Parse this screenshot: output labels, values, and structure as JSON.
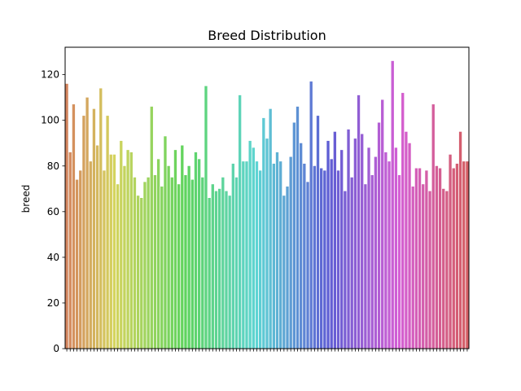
{
  "chart_data": {
    "type": "bar",
    "title": "Breed Distribution",
    "xlabel": "",
    "ylabel": "breed",
    "ylim": [
      0,
      132
    ],
    "yticks": [
      0,
      20,
      40,
      60,
      80,
      100,
      120
    ],
    "grid": false,
    "legend": "none",
    "values": [
      116,
      86,
      107,
      74,
      78,
      102,
      110,
      82,
      105,
      89,
      114,
      78,
      102,
      85,
      85,
      72,
      91,
      80,
      87,
      86,
      75,
      67,
      66,
      73,
      75,
      106,
      76,
      83,
      71,
      93,
      80,
      75,
      87,
      72,
      89,
      76,
      80,
      74,
      86,
      83,
      75,
      115,
      66,
      72,
      69,
      70,
      75,
      69,
      67,
      81,
      75,
      111,
      82,
      82,
      91,
      88,
      82,
      78,
      101,
      92,
      105,
      81,
      86,
      82,
      67,
      71,
      84,
      99,
      106,
      90,
      81,
      73,
      117,
      80,
      102,
      79,
      78,
      91,
      83,
      95,
      78,
      87,
      69,
      96,
      75,
      92,
      111,
      94,
      72,
      88,
      76,
      84,
      99,
      109,
      86,
      82,
      126,
      88,
      76,
      112,
      95,
      90,
      71,
      79,
      79,
      72,
      78,
      69,
      107,
      80,
      79,
      70,
      69,
      85,
      79,
      81,
      95,
      82,
      82
    ]
  }
}
